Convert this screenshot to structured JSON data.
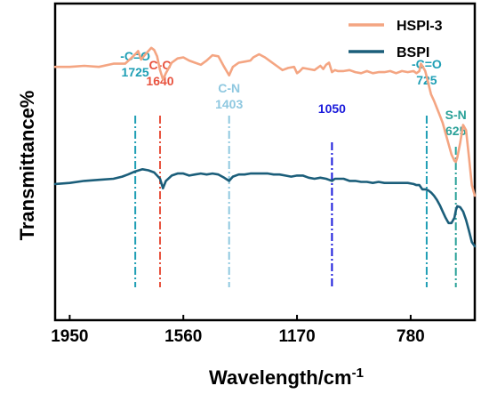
{
  "chart_data": {
    "type": "line",
    "xlabel": "Wavelength/cm",
    "xlabel_superscript": "-1",
    "ylabel": "Transmittance%",
    "x_ticks": [
      1950,
      1560,
      1170,
      780
    ],
    "xlim": [
      2000,
      560
    ],
    "x_reversed": true,
    "yaxis_ticklabels": false,
    "legend": {
      "placement": "top-right"
    },
    "series": [
      {
        "name": "HSPI-3",
        "color": "#f4a582",
        "x": [
          2000,
          1950,
          1900,
          1850,
          1800,
          1760,
          1740,
          1725,
          1715,
          1705,
          1690,
          1670,
          1660,
          1650,
          1640,
          1630,
          1620,
          1600,
          1580,
          1560,
          1540,
          1520,
          1500,
          1480,
          1460,
          1440,
          1420,
          1403,
          1390,
          1370,
          1350,
          1330,
          1320,
          1300,
          1280,
          1260,
          1240,
          1220,
          1200,
          1180,
          1170,
          1160,
          1150,
          1130,
          1110,
          1090,
          1080,
          1070,
          1060,
          1050,
          1040,
          1030,
          1010,
          990,
          970,
          950,
          930,
          910,
          890,
          870,
          850,
          830,
          810,
          790,
          770,
          760,
          750,
          745,
          740,
          730,
          720,
          710,
          700,
          690,
          680,
          670,
          660,
          650,
          640,
          630,
          625,
          620,
          610,
          600,
          590,
          580,
          570,
          560
        ],
        "values": [
          0.0,
          0.0,
          0.1,
          0.0,
          0.3,
          0.3,
          0.8,
          1.2,
          1.5,
          0.7,
          1.2,
          1.8,
          1.6,
          1.0,
          -0.3,
          -1.2,
          -0.6,
          0.4,
          0.8,
          0.9,
          0.6,
          0.4,
          0.2,
          0.6,
          1.1,
          1.0,
          0.0,
          -0.8,
          0.0,
          0.4,
          0.5,
          0.6,
          0.9,
          1.2,
          0.9,
          0.5,
          0.1,
          -0.3,
          -0.1,
          0.0,
          -0.6,
          -0.4,
          -0.1,
          -0.2,
          -0.3,
          0.1,
          -0.2,
          0.2,
          0.4,
          -0.5,
          -0.3,
          -0.4,
          -0.4,
          -0.3,
          -0.5,
          -0.6,
          -0.4,
          -0.6,
          -0.5,
          -0.5,
          -0.4,
          -0.6,
          -0.4,
          -0.5,
          -0.4,
          -0.6,
          -0.4,
          0.3,
          0.1,
          -0.4,
          -1.5,
          -2.6,
          -3.2,
          -3.9,
          -4.6,
          -5.3,
          -6.3,
          -7.3,
          -8.3,
          -8.9,
          -9.0,
          -8.6,
          -7.2,
          -5.5,
          -6.0,
          -8.5,
          -11.2,
          -12.2
        ]
      },
      {
        "name": "BSPI",
        "color": "#1b5e7a",
        "x": [
          2000,
          1950,
          1900,
          1850,
          1800,
          1770,
          1750,
          1725,
          1700,
          1680,
          1660,
          1650,
          1640,
          1630,
          1620,
          1600,
          1580,
          1560,
          1540,
          1520,
          1500,
          1480,
          1460,
          1440,
          1420,
          1403,
          1390,
          1370,
          1350,
          1330,
          1310,
          1290,
          1270,
          1250,
          1230,
          1210,
          1190,
          1170,
          1150,
          1130,
          1110,
          1090,
          1070,
          1060,
          1050,
          1040,
          1030,
          1010,
          990,
          970,
          950,
          930,
          910,
          890,
          870,
          850,
          830,
          810,
          790,
          770,
          760,
          750,
          740,
          730,
          720,
          710,
          700,
          690,
          680,
          670,
          660,
          650,
          640,
          630,
          625,
          620,
          610,
          600,
          590,
          580,
          570,
          560
        ],
        "values": [
          -11.1,
          -11.0,
          -10.8,
          -10.7,
          -10.6,
          -10.4,
          -10.2,
          -9.9,
          -9.7,
          -9.8,
          -10.0,
          -10.3,
          -10.6,
          -11.5,
          -10.8,
          -10.3,
          -10.1,
          -10.1,
          -10.3,
          -10.2,
          -10.1,
          -10.2,
          -10.1,
          -10.2,
          -10.5,
          -10.8,
          -10.4,
          -10.2,
          -10.2,
          -10.1,
          -10.1,
          -10.1,
          -10.1,
          -10.2,
          -10.2,
          -10.3,
          -10.4,
          -10.3,
          -10.3,
          -10.5,
          -10.6,
          -10.5,
          -10.6,
          -10.7,
          -10.8,
          -10.6,
          -10.6,
          -10.6,
          -10.8,
          -10.8,
          -10.9,
          -10.9,
          -11.0,
          -10.9,
          -11.0,
          -11.0,
          -11.0,
          -11.0,
          -11.0,
          -11.1,
          -11.2,
          -11.2,
          -11.6,
          -11.6,
          -11.7,
          -11.9,
          -12.2,
          -12.6,
          -13.1,
          -13.7,
          -14.3,
          -14.8,
          -14.8,
          -14.3,
          -13.6,
          -13.2,
          -13.3,
          -13.7,
          -14.5,
          -15.5,
          -16.6,
          -17.0
        ]
      }
    ],
    "annotations": [
      {
        "lines": [
          "-C=O",
          "1725"
        ],
        "x": 1725,
        "color": "#1f9fb5",
        "dash": "dash-dot"
      },
      {
        "lines": [
          "C-C",
          "1640"
        ],
        "x": 1640,
        "color": "#e8533f",
        "dash": "dash-dot"
      },
      {
        "lines": [
          "C-N",
          "1403"
        ],
        "x": 1403,
        "color": "#8fc8e0",
        "dash": "dash-dot"
      },
      {
        "lines": [
          "1050"
        ],
        "x": 1050,
        "color": "#1a1adb",
        "dash": "dash-dot"
      },
      {
        "lines": [
          "-C=O",
          "725"
        ],
        "x": 725,
        "color": "#1f9fb5",
        "dash": "dash-dot"
      },
      {
        "lines": [
          "S-N",
          "625"
        ],
        "x": 625,
        "color": "#2aa198",
        "dash": "dash-dot"
      }
    ]
  }
}
